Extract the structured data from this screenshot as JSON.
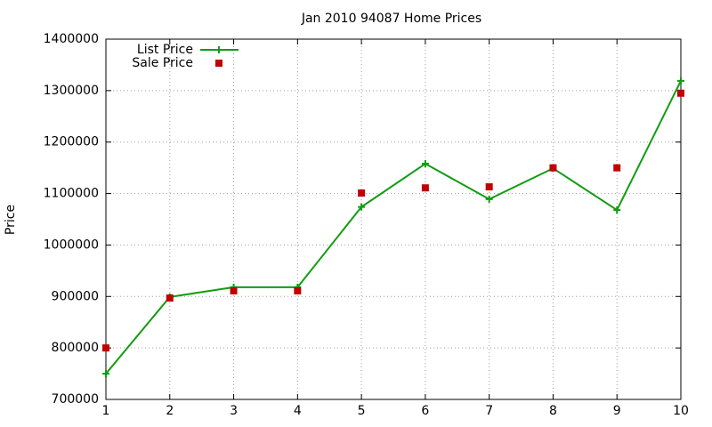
{
  "chart_data": {
    "type": "line",
    "title": "Jan 2010 94087 Home Prices",
    "y_label": "Price",
    "x": [
      1,
      2,
      3,
      4,
      5,
      6,
      7,
      8,
      9,
      10
    ],
    "series": [
      {
        "name": "List Price",
        "color": "#109d10",
        "style": "linespoints",
        "values": [
          750000,
          899000,
          918000,
          918000,
          1074000,
          1158000,
          1089000,
          1149000,
          1068000,
          1319000
        ]
      },
      {
        "name": "Sale Price",
        "color": "#c00000",
        "style": "points",
        "values": [
          800000,
          897000,
          911000,
          911000,
          1101000,
          1111000,
          1113000,
          1150000,
          1150000,
          1295000
        ]
      }
    ],
    "xlim": [
      1,
      10
    ],
    "xticks": [
      1,
      2,
      3,
      4,
      5,
      6,
      7,
      8,
      9,
      10
    ],
    "ylim": [
      700000,
      1400000
    ],
    "yticks": [
      700000,
      800000,
      900000,
      1000000,
      1100000,
      1200000,
      1300000,
      1400000
    ],
    "grid": true,
    "legend": "top-left"
  }
}
